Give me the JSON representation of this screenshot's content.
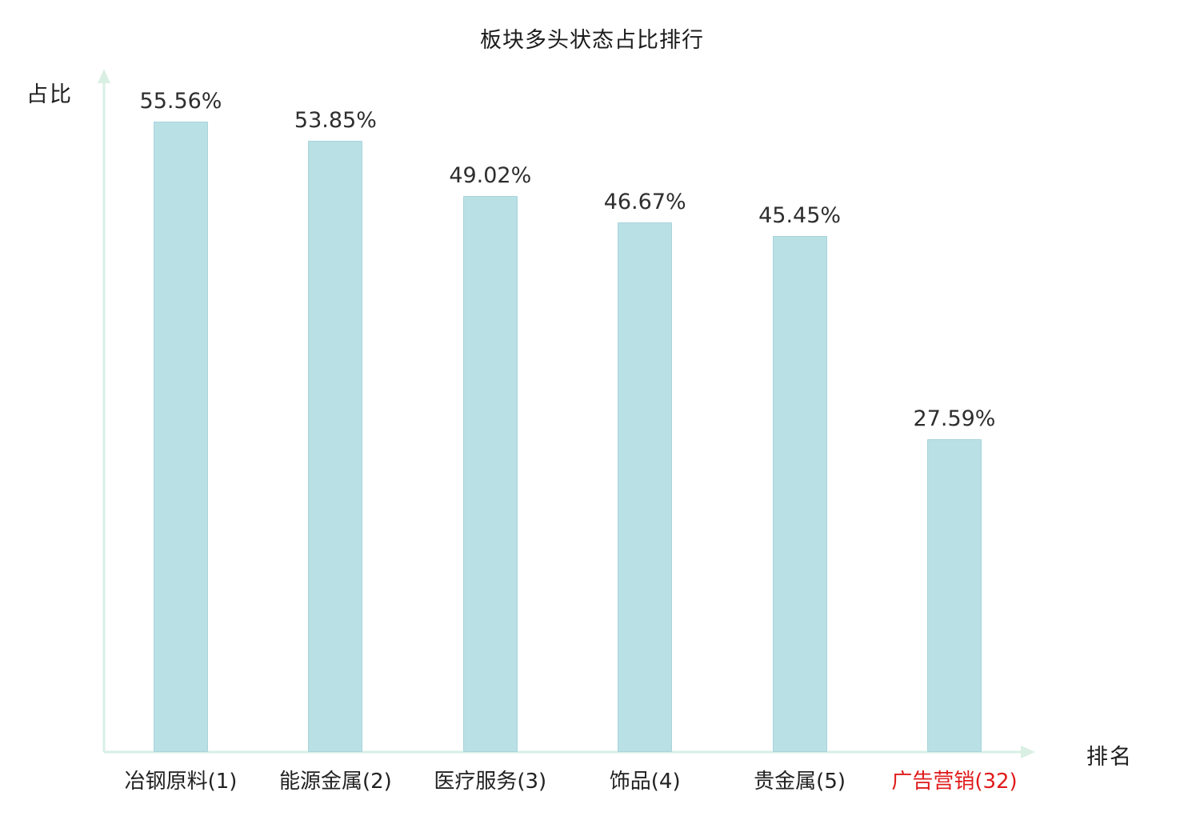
{
  "chart_data": {
    "type": "bar",
    "title": "板块多头状态占比排行",
    "ylabel": "占比",
    "xlabel": "排名",
    "categories": [
      "冶钢原料(1)",
      "能源金属(2)",
      "医疗服务(3)",
      "饰品(4)",
      "贵金属(5)",
      "广告营销(32)"
    ],
    "values": [
      55.56,
      53.85,
      49.02,
      46.67,
      45.45,
      27.59
    ],
    "value_labels": [
      "55.56%",
      "53.85%",
      "49.02%",
      "46.67%",
      "45.45%",
      "27.59%"
    ],
    "highlight_index": 5,
    "ylim": [
      0,
      60
    ],
    "grid": false,
    "legend": false,
    "colors": {
      "bar_fill": "#b9e0e5",
      "bar_border": "#a9d4db",
      "axis": "#d9efe4",
      "value_text": "#2e2e2e",
      "category_text": "#222222",
      "highlight_text": "#e01b1b"
    }
  }
}
